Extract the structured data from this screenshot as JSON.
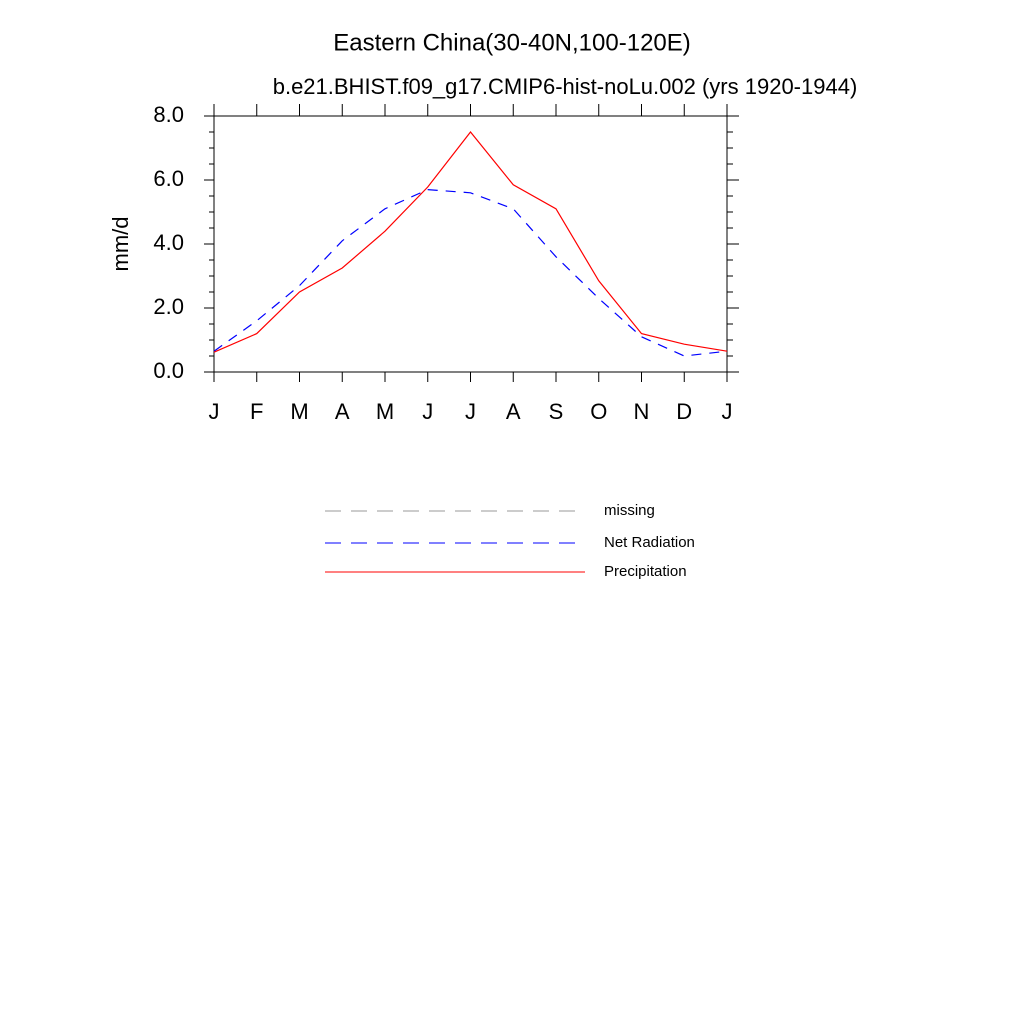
{
  "chart_data": {
    "type": "line",
    "title": "Eastern China(30-40N,100-120E)",
    "subtitle": "b.e21.BHIST.f09_g17.CMIP6-hist-noLu.002 (yrs 1920-1944)",
    "y_label": "mm/d",
    "categories": [
      "J",
      "F",
      "M",
      "A",
      "M",
      "J",
      "J",
      "A",
      "S",
      "O",
      "N",
      "D",
      "J"
    ],
    "ylim": [
      0,
      8
    ],
    "yticks": [
      {
        "value": 0,
        "label": "0.0"
      },
      {
        "value": 2,
        "label": "2.0"
      },
      {
        "value": 4,
        "label": "4.0"
      },
      {
        "value": 6,
        "label": "6.0"
      },
      {
        "value": 8,
        "label": "8.0"
      }
    ],
    "series": [
      {
        "name": "missing",
        "color": "#999999",
        "dash": true,
        "values": [
          null,
          null,
          null,
          null,
          null,
          null,
          null,
          null,
          null,
          null,
          null,
          null,
          null
        ]
      },
      {
        "name": "Net Radiation",
        "color": "#0000ff",
        "dash": true,
        "values": [
          0.65,
          1.6,
          2.7,
          4.1,
          5.1,
          5.7,
          5.6,
          5.1,
          3.6,
          2.3,
          1.1,
          0.5,
          0.65
        ]
      },
      {
        "name": "Precipitation",
        "color": "#ff0000",
        "dash": false,
        "values": [
          0.62,
          1.2,
          2.5,
          3.25,
          4.4,
          5.78,
          7.5,
          5.85,
          5.1,
          2.85,
          1.2,
          0.87,
          0.65
        ]
      }
    ]
  }
}
